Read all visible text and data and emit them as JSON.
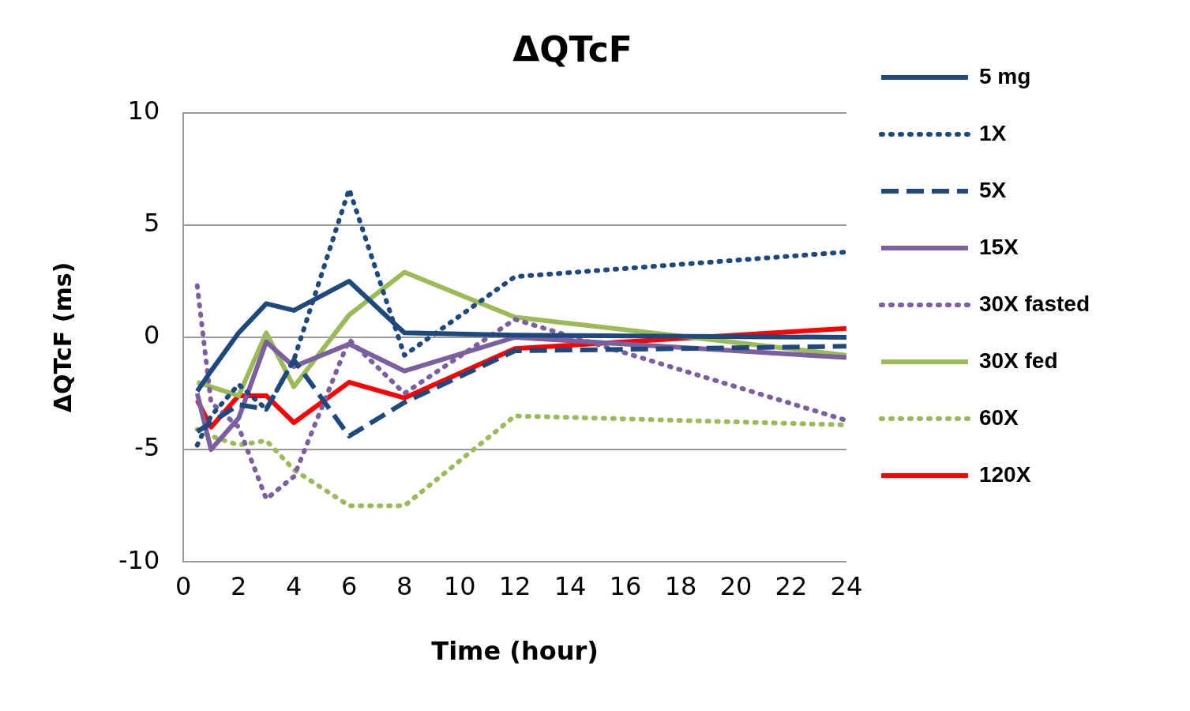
{
  "chart_data": {
    "type": "line",
    "title": "ΔQTcF",
    "xlabel": "Time (hour)",
    "ylabel": "ΔQTcF (ms)",
    "xlim": [
      0,
      24
    ],
    "xticks": [
      0,
      2,
      4,
      6,
      8,
      10,
      12,
      14,
      16,
      18,
      20,
      22,
      24
    ],
    "ylim": [
      -10,
      10
    ],
    "yticks": [
      -10,
      -5,
      0,
      5,
      10
    ],
    "grid": "y",
    "legend": "right",
    "marker": "none",
    "x": [
      0.5,
      1,
      2,
      3,
      4,
      6,
      8,
      12,
      24
    ],
    "series": [
      {
        "name": "5 mg",
        "color": "#1f497d",
        "line_style": "solid",
        "values": [
          -2.4,
          -1.5,
          0.2,
          1.5,
          1.2,
          2.5,
          0.2,
          0.1,
          0.0
        ]
      },
      {
        "name": "1X",
        "color": "#1f497d",
        "line_style": "dotted",
        "values": [
          -4.8,
          -3.5,
          -2.1,
          -3.2,
          -1.0,
          6.6,
          -0.8,
          2.7,
          3.8
        ]
      },
      {
        "name": "5X",
        "color": "#1f497d",
        "line_style": "dashed",
        "values": [
          -4.2,
          -3.8,
          -3.0,
          -3.2,
          -1.0,
          -4.4,
          -2.9,
          -0.6,
          -0.4
        ]
      },
      {
        "name": "15X",
        "color": "#7b5f9f",
        "line_style": "solid",
        "values": [
          -2.5,
          -5.0,
          -3.6,
          -0.2,
          -1.3,
          -0.3,
          -1.5,
          0.0,
          -0.9
        ]
      },
      {
        "name": "30X fasted",
        "color": "#7b5f9f",
        "line_style": "dotted",
        "values": [
          2.3,
          -2.9,
          -4.0,
          -7.2,
          -6.2,
          -0.1,
          -2.5,
          0.8,
          -3.7
        ]
      },
      {
        "name": "30X fed",
        "color": "#9bbb59",
        "line_style": "solid",
        "values": [
          -2.0,
          -2.2,
          -2.6,
          0.2,
          -2.2,
          1.0,
          2.9,
          0.9,
          -0.8
        ]
      },
      {
        "name": "60X",
        "color": "#9bbb59",
        "line_style": "dotted",
        "values": [
          -4.1,
          -4.4,
          -4.8,
          -4.6,
          -5.9,
          -7.5,
          -7.5,
          -3.5,
          -3.9
        ]
      },
      {
        "name": "120X",
        "color": "#ff0000",
        "line_style": "solid",
        "values": [
          -2.8,
          -4.0,
          -2.6,
          -2.6,
          -3.8,
          -2.0,
          -2.7,
          -0.5,
          0.4
        ]
      }
    ]
  }
}
